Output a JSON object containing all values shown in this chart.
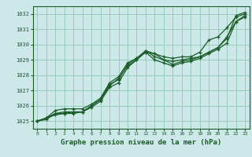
{
  "bg_color": "#cce8e8",
  "grid_color": "#99ccbb",
  "line_color": "#1a5c28",
  "title": "Graphe pression niveau de la mer (hPa)",
  "ylim": [
    1024.5,
    1032.5
  ],
  "yticks": [
    1025,
    1026,
    1027,
    1028,
    1029,
    1030,
    1031,
    1032
  ],
  "xticks": [
    0,
    1,
    2,
    3,
    4,
    5,
    6,
    7,
    8,
    9,
    10,
    11,
    12,
    13,
    14,
    15,
    16,
    17,
    18,
    19,
    20,
    21,
    22,
    23
  ],
  "series": [
    [
      1025.0,
      1025.2,
      1025.7,
      1025.8,
      1025.8,
      1025.8,
      1026.1,
      1026.5,
      1027.5,
      1027.9,
      1028.8,
      1029.1,
      1029.5,
      1029.4,
      1029.2,
      1029.1,
      1029.2,
      1029.2,
      1029.5,
      1030.3,
      1030.5,
      1031.1,
      1031.8,
      1032.0
    ],
    [
      1025.0,
      1025.2,
      1025.5,
      1025.5,
      1025.5,
      1025.6,
      1025.9,
      1026.3,
      1027.2,
      1027.5,
      1028.5,
      1029.0,
      1029.6,
      1029.4,
      1029.0,
      1028.7,
      1028.9,
      1029.0,
      1029.2,
      1029.5,
      1029.8,
      1030.5,
      1031.5,
      1031.8
    ],
    [
      1025.0,
      1025.2,
      1025.4,
      1025.5,
      1025.6,
      1025.6,
      1026.0,
      1026.4,
      1027.3,
      1027.8,
      1028.6,
      1029.0,
      1029.5,
      1029.0,
      1028.8,
      1028.6,
      1028.8,
      1028.9,
      1029.1,
      1029.4,
      1029.7,
      1030.1,
      1031.5,
      1031.9
    ],
    [
      1025.0,
      1025.1,
      1025.5,
      1025.6,
      1025.6,
      1025.6,
      1026.0,
      1026.4,
      1027.4,
      1027.7,
      1028.7,
      1029.1,
      1029.6,
      1029.2,
      1029.0,
      1028.9,
      1029.0,
      1029.1,
      1029.2,
      1029.5,
      1029.8,
      1030.4,
      1031.9,
      1032.1
    ]
  ],
  "marker": "+",
  "markersize": 3.5,
  "linewidth": 0.9
}
